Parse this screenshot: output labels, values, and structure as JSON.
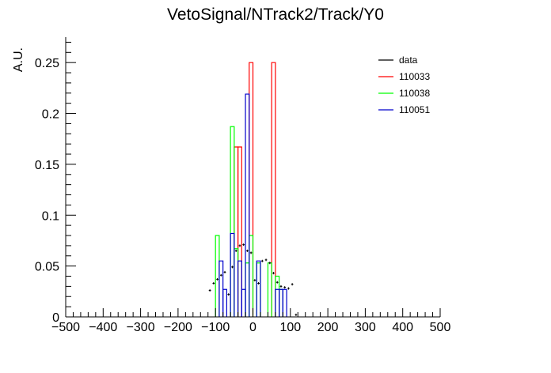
{
  "chart_data": {
    "type": "histogram",
    "title": "VetoSignal/NTrack2/Track/Y0",
    "xlabel": "",
    "ylabel": "A.U.",
    "xlim": [
      -500,
      500
    ],
    "ylim": [
      0,
      0.275
    ],
    "bin_width": 10,
    "x_ticks": [
      -500,
      -400,
      -300,
      -200,
      -100,
      0,
      100,
      200,
      300,
      400,
      500
    ],
    "y_ticks": [
      0,
      0.05,
      0.1,
      0.15,
      0.2,
      0.25
    ],
    "x_tick_labels": [
      "−500",
      "−400",
      "−300",
      "−200",
      "−100",
      "0",
      "100",
      "200",
      "300",
      "400",
      "500"
    ],
    "y_tick_labels": [
      "0",
      "0.05",
      "0.1",
      "0.15",
      "0.2",
      "0.25"
    ],
    "legend_position": "top-right",
    "data": {
      "name": "data",
      "color": "#000000",
      "x": [
        -115,
        -105,
        -95,
        -85,
        -75,
        -65,
        -55,
        -45,
        -35,
        -25,
        -15,
        -5,
        5,
        15,
        25,
        35,
        45,
        55,
        65,
        75,
        85,
        95,
        105,
        115
      ],
      "y": [
        0.026,
        0.033,
        0.037,
        0.041,
        0.044,
        0.022,
        0.049,
        0.065,
        0.07,
        0.071,
        0.065,
        0.063,
        0.036,
        0.033,
        0.055,
        0.056,
        0.053,
        0.043,
        0.034,
        0.03,
        0.029,
        0.028,
        0.032,
        0.002
      ]
    },
    "series": [
      {
        "name": "110033",
        "color": "#ff0000",
        "bins": [
          {
            "x0": -50,
            "x1": -40,
            "y": 0.167
          },
          {
            "x0": -40,
            "x1": -30,
            "y": 0.167
          },
          {
            "x0": -10,
            "x1": 0,
            "y": 0.25
          },
          {
            "x0": 50,
            "x1": 60,
            "y": 0.25
          }
        ]
      },
      {
        "name": "110038",
        "color": "#00ff00",
        "bins": [
          {
            "x0": -100,
            "x1": -90,
            "y": 0.08
          },
          {
            "x0": -60,
            "x1": -50,
            "y": 0.187
          },
          {
            "x0": -50,
            "x1": -40,
            "y": 0.067
          },
          {
            "x0": -20,
            "x1": -10,
            "y": 0.053
          },
          {
            "x0": -10,
            "x1": 0,
            "y": 0.08
          },
          {
            "x0": 10,
            "x1": 20,
            "y": 0.053
          },
          {
            "x0": 40,
            "x1": 50,
            "y": 0.053
          },
          {
            "x0": 60,
            "x1": 70,
            "y": 0.04
          },
          {
            "x0": 70,
            "x1": 80,
            "y": 0.027
          }
        ]
      },
      {
        "name": "110051",
        "color": "#0000cc",
        "bins": [
          {
            "x0": -90,
            "x1": -80,
            "y": 0.055
          },
          {
            "x0": -80,
            "x1": -70,
            "y": 0.027
          },
          {
            "x0": -60,
            "x1": -50,
            "y": 0.082
          },
          {
            "x0": -40,
            "x1": -30,
            "y": 0.055
          },
          {
            "x0": -30,
            "x1": -20,
            "y": 0.027
          },
          {
            "x0": -20,
            "x1": -10,
            "y": 0.219
          },
          {
            "x0": 10,
            "x1": 20,
            "y": 0.055
          },
          {
            "x0": 60,
            "x1": 70,
            "y": 0.027
          },
          {
            "x0": 70,
            "x1": 80,
            "y": 0.027
          },
          {
            "x0": 80,
            "x1": 90,
            "y": 0.027
          }
        ]
      }
    ]
  }
}
